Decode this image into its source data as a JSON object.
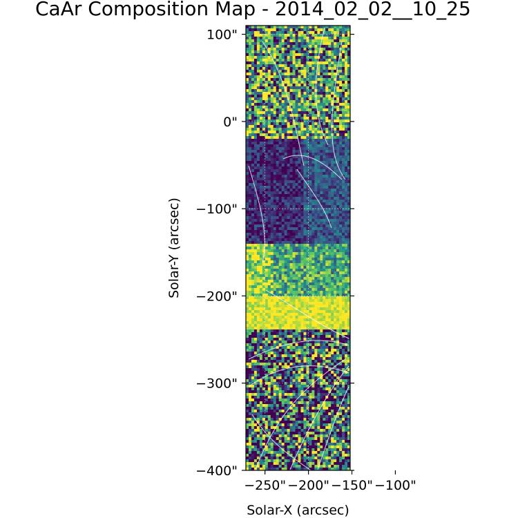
{
  "chart_data": {
    "type": "heatmap",
    "title": "CaAr Composition Map - 2014_02_02__10_25",
    "xlabel": "Solar-X (arcsec)",
    "ylabel": "Solar-Y (arcsec)",
    "xlim": [
      -272,
      -152
    ],
    "ylim": [
      -400,
      110
    ],
    "x_ticks": [
      {
        "value": -250,
        "label": "−250\""
      },
      {
        "value": -200,
        "label": "−200\""
      },
      {
        "value": -150,
        "label": "−150\""
      },
      {
        "value": -100,
        "label": "−100\""
      }
    ],
    "y_ticks": [
      {
        "value": 100,
        "label": "100\""
      },
      {
        "value": 0,
        "label": "0\""
      },
      {
        "value": -100,
        "label": "−100\""
      },
      {
        "value": -200,
        "label": "−200\""
      },
      {
        "value": -300,
        "label": "−300\""
      },
      {
        "value": -400,
        "label": "−400\""
      }
    ],
    "colormap": [
      "#440154",
      "#3b528b",
      "#21918c",
      "#5ec962",
      "#fde725"
    ],
    "grid": true,
    "overlay": "white field lines",
    "regions": [
      {
        "y_range": [
          110,
          -20
        ],
        "level": 0.55,
        "noise": 0.55
      },
      {
        "y_range": [
          -20,
          -140
        ],
        "level": 0.12,
        "noise": 0.2
      },
      {
        "y_range": [
          -140,
          -200
        ],
        "level": 0.6,
        "noise": 0.35
      },
      {
        "y_range": [
          -200,
          -240
        ],
        "level": 0.95,
        "noise": 0.15
      },
      {
        "y_range": [
          -240,
          -400
        ],
        "level": 0.35,
        "noise": 0.65
      }
    ]
  }
}
